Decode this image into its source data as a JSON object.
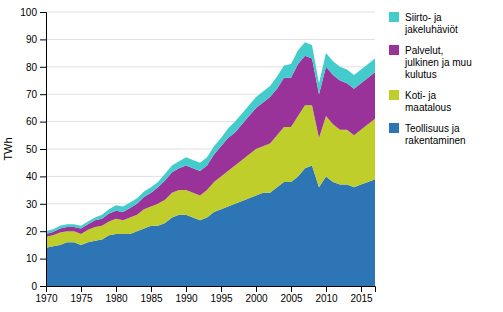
{
  "chart_data": {
    "type": "area",
    "stacked": true,
    "ylabel": "TWh",
    "x": [
      1970,
      1971,
      1972,
      1973,
      1974,
      1975,
      1976,
      1977,
      1978,
      1979,
      1980,
      1981,
      1982,
      1983,
      1984,
      1985,
      1986,
      1987,
      1988,
      1989,
      1990,
      1991,
      1992,
      1993,
      1994,
      1995,
      1996,
      1997,
      1998,
      1999,
      2000,
      2001,
      2002,
      2003,
      2004,
      2005,
      2006,
      2007,
      2008,
      2009,
      2010,
      2011,
      2012,
      2013,
      2014,
      2015,
      2016,
      2017
    ],
    "series": [
      {
        "name": "Teollisuus ja\nrakentaminen",
        "color": "#2E75B6",
        "values": [
          14,
          14.5,
          15,
          16,
          16,
          15,
          16,
          16.5,
          17,
          18.5,
          19,
          19,
          19,
          20,
          21,
          22,
          22,
          23,
          25,
          26,
          26,
          25,
          24,
          25,
          27,
          28,
          29,
          30,
          31,
          32,
          33,
          34,
          34,
          36,
          38,
          38,
          40,
          43,
          44,
          36,
          40,
          38,
          37,
          37,
          36,
          37,
          38,
          39
        ]
      },
      {
        "name": "Koti- ja\nmaatalous",
        "color": "#BFCE2A",
        "values": [
          4,
          4,
          4.5,
          4,
          4,
          4,
          4.5,
          5,
          5,
          5,
          5.5,
          5,
          6,
          6,
          7,
          7,
          8,
          8.5,
          9,
          9,
          9,
          9,
          9,
          10,
          11,
          12,
          13,
          14,
          15,
          16,
          17,
          17,
          18,
          19,
          20,
          20,
          22,
          23,
          22,
          18,
          22,
          21,
          20,
          20,
          19,
          20,
          21,
          22
        ]
      },
      {
        "name": "Palvelut,\njulkinen ja muu\nkulutus",
        "color": "#993399",
        "values": [
          1,
          1.2,
          1.5,
          1.5,
          1.5,
          2,
          2,
          2.5,
          2.5,
          3,
          3,
          3,
          3.5,
          4,
          4.5,
          5,
          6,
          7,
          7.5,
          8,
          9,
          9,
          9,
          9,
          10,
          11,
          12,
          12,
          13,
          14,
          15,
          16,
          17,
          17,
          18,
          18,
          19,
          18,
          17,
          16,
          18,
          18,
          18,
          17,
          17,
          17,
          17,
          17
        ]
      },
      {
        "name": "Siirto- ja\njakeluhäviöt",
        "color": "#44CCCC",
        "values": [
          1,
          1,
          1,
          1,
          1,
          1,
          1,
          1,
          1.5,
          1.5,
          2,
          2,
          2,
          2,
          2,
          2,
          2,
          2.5,
          2.5,
          2.5,
          3,
          3,
          3,
          3,
          3,
          3,
          3.5,
          4,
          4,
          4,
          4,
          4,
          4,
          4.5,
          4.5,
          5,
          5,
          5,
          5,
          4,
          5,
          5,
          5,
          5,
          5,
          5,
          5,
          5
        ]
      }
    ],
    "xlim": [
      1970,
      2017
    ],
    "ylim": [
      0,
      100
    ],
    "xticks": [
      1970,
      1975,
      1980,
      1985,
      1990,
      1995,
      2000,
      2005,
      2010,
      2015
    ],
    "yticks": [
      0,
      10,
      20,
      30,
      40,
      50,
      60,
      70,
      80,
      90,
      100
    ],
    "grid": true,
    "legend": "right"
  }
}
